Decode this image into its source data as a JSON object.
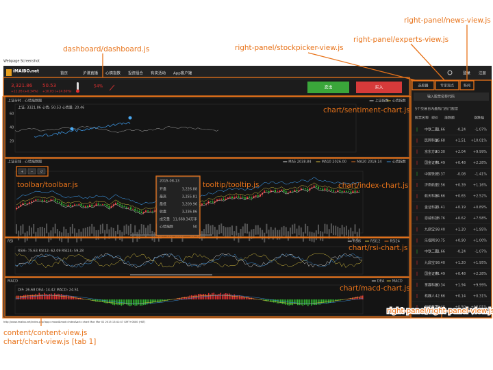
{
  "page_title": "Webpage Screenshot",
  "nav": {
    "logo": "iMAIBO.net",
    "items": [
      "首页",
      "沪港直播",
      "心情指数",
      "投资组合",
      "有奖活动",
      "App客户端"
    ],
    "login": "登录",
    "register": "注册"
  },
  "dashboard": {
    "index_value": "3,321.86",
    "index_change": "+11.26 (+0.34%)",
    "mood_value": "50.53",
    "mood_change": "+10.03 (+24.80%)",
    "percent": "54%",
    "sell": "卖出",
    "buy": "买入"
  },
  "right_panel": {
    "tabs": [
      "选股器",
      "专家观点",
      "新闻"
    ],
    "search": "输入股票名称代码",
    "subtitle": "5个交易日内最热门的门股票",
    "columns": [
      "股票名称",
      "现价",
      "涨跌额",
      "涨跌幅"
    ],
    "stocks": [
      [
        "中铁二局",
        "21.66",
        "-0.24",
        "-1.07%"
      ],
      [
        "民网科技",
        "16.68",
        "+1.51",
        "+10.01%"
      ],
      [
        "京东方A",
        "20.30",
        "+2.04",
        "+9.99%"
      ],
      [
        "国金证券",
        "21.49",
        "+0.48",
        "+2.28%"
      ],
      [
        "中国铁建",
        "3.37",
        "-0.08",
        "-1.41%"
      ],
      [
        "济南航空",
        "22.56",
        "+0.39",
        "+1.16%"
      ],
      [
        "航天科技",
        "24.66",
        "+0.65",
        "+2.52%"
      ],
      [
        "金证科技",
        "21.41",
        "+0.19",
        "+0.89%"
      ],
      [
        "恩威科技",
        "8.76",
        "+0.62",
        "+7.58%"
      ],
      [
        "九鼎宝",
        "98.40",
        "+1.20",
        "+1.95%"
      ],
      [
        "乐视网",
        "90.75",
        "+0.90",
        "+1.00%"
      ],
      [
        "中铁二局",
        "21.66",
        "-0.24",
        "-1.07%"
      ],
      [
        "九鼎宝",
        "98.40",
        "+1.20",
        "+1.95%"
      ],
      [
        "国金证券",
        "21.49",
        "+0.48",
        "+2.28%"
      ],
      [
        "掌趣科技",
        "20.34",
        "+1.94",
        "+9.99%"
      ],
      [
        "机器人",
        "42.66",
        "+0.14",
        "+0.31%"
      ],
      [
        "如意集团",
        "20.46",
        "+0.50",
        "+10.01%"
      ]
    ]
  },
  "charts": {
    "sentiment": {
      "title": "上证分时 - 心情指数图",
      "info": "上证: 3321.86   心情: 50.53   心情量: 20.46",
      "legend": [
        "上证指数",
        "心情指数"
      ],
      "yticks": [
        "60",
        "40",
        "20"
      ]
    },
    "index": {
      "title": "上证日线 - 心情指数图",
      "legend": [
        "MA5 2038.84",
        "MA10 2026.00",
        "MA20 2019.14",
        "心情指数"
      ],
      "toolbar": [
        "+",
        "−",
        "↺"
      ]
    },
    "tooltip": {
      "date": "2015-08-13",
      "rows": [
        [
          "开盘",
          "3,226.88"
        ],
        [
          "最高",
          "3,255.81"
        ],
        [
          "最低",
          "3,209.96"
        ],
        [
          "收盘",
          "3,236.86"
        ],
        [
          "成交量",
          "11,668.34万手"
        ],
        [
          "心情指数",
          "50"
        ]
      ]
    },
    "rsi": {
      "title": "RSI",
      "info": "RSI6: 75.63   RSI12: 62.09   RSI24: 59.28",
      "legend": [
        "RSI6",
        "RSI12",
        "RSI24"
      ]
    },
    "macd": {
      "title": "MACD",
      "info": "DIF: 26.68   DEA: 14.42   MACD: 24.51",
      "legend": [
        "DEA",
        "MACD"
      ]
    }
  },
  "annotations": {
    "dashboard": "dashboard/dashboard.js",
    "stockpicker": "right-panel/stockpicker-view.js",
    "experts": "right-panel/experts-view.js",
    "news": "right-panel/news-view.js",
    "sentiment": "chart/sentiment-chart.js",
    "index": "chart/index-chart.js",
    "toolbar": "toolbar/toolbar.js",
    "tooltip": "tooltip/tooltip.js",
    "rsi": "chart/rsi-chart.js",
    "macd": "chart/macd-chart.js",
    "content": "content/content-view.js",
    "chartview": "chart/chart-view.js [tab 1]",
    "rightpanel": "right-panel/right-panel-view.js"
  },
  "footer_url": "http://www.imaibo.net/index.php?app=mood&mod=Index&act=chart Mon Mar 02 2015 13:41:47 GMT+0800 (HKT)"
}
